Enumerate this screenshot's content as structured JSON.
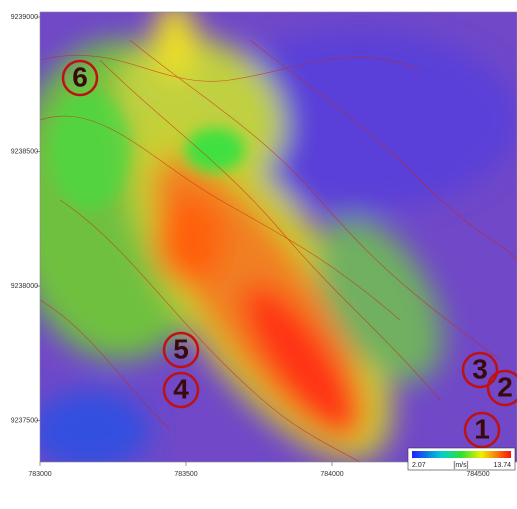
{
  "map": {
    "yticks": [
      "9239000",
      "9238500",
      "9238000",
      "9237500"
    ],
    "xticks": [
      "783000",
      "783500",
      "784000",
      "784500"
    ],
    "colorbar": {
      "min": "2.07",
      "unit": "[m/s]",
      "max": "13.74"
    },
    "markers": [
      "1",
      "2",
      "3",
      "4",
      "5",
      "6"
    ]
  }
}
